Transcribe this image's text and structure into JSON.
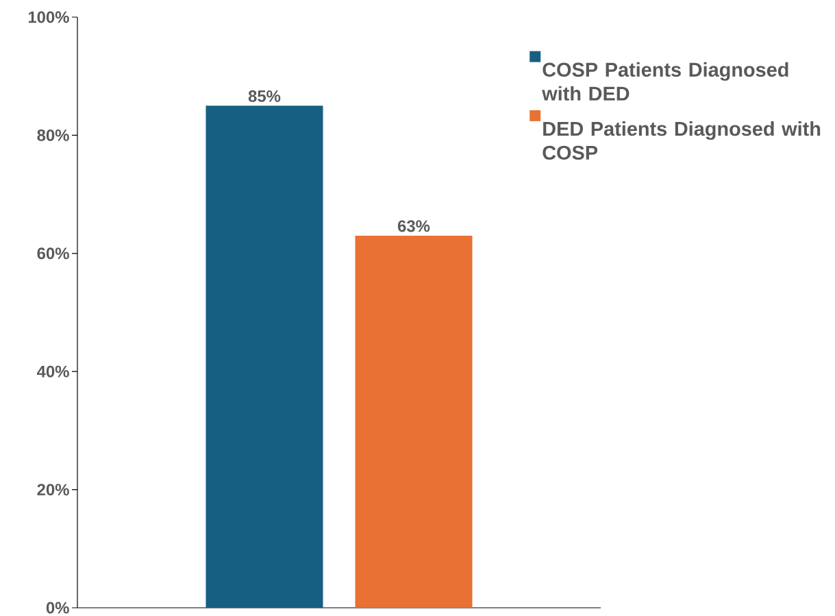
{
  "chart_data": {
    "type": "bar",
    "categories": [
      null
    ],
    "series": [
      {
        "name": "COSP Patients Diagnosed with DED",
        "color": "#175f82",
        "values": [
          85
        ],
        "value_labels": [
          "85%"
        ]
      },
      {
        "name": "DED Patients Diagnosed with COSP",
        "color": "#e87133",
        "values": [
          63
        ],
        "value_labels": [
          "63%"
        ]
      }
    ],
    "ylim": [
      0,
      100
    ],
    "yticks": [
      {
        "value": 0,
        "label": "0%"
      },
      {
        "value": 20,
        "label": "20%"
      },
      {
        "value": 40,
        "label": "40%"
      },
      {
        "value": 60,
        "label": "60%"
      },
      {
        "value": 80,
        "label": "80%"
      },
      {
        "value": 100,
        "label": "100%"
      }
    ],
    "grid": false,
    "legend": "top right"
  }
}
